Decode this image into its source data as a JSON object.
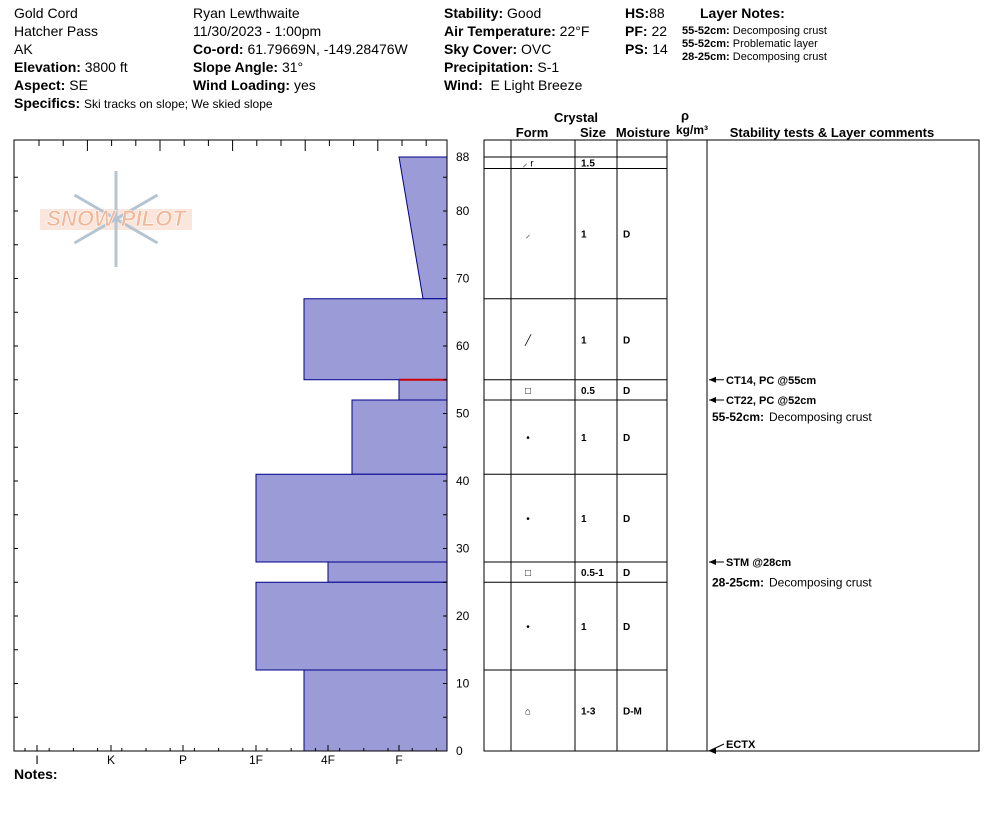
{
  "header": {
    "location_name": "Gold Cord",
    "area": "Hatcher Pass",
    "state": "AK",
    "elevation_label": "Elevation:",
    "elevation_value": "3800 ft",
    "aspect_label": "Aspect:",
    "aspect_value": "SE",
    "specifics_label": "Specifics:",
    "specifics_value": "Ski tracks on slope; We skied slope",
    "observer": "Ryan Lewthwaite",
    "datetime": "11/30/2023 - 1:00pm",
    "coord_label": "Co-ord:",
    "coord_value": "61.79669N, -149.28476W",
    "slope_label": "Slope Angle:",
    "slope_value": "31°",
    "wind_loading_label": "Wind Loading:",
    "wind_loading_value": "yes",
    "stability_label": "Stability:",
    "stability_value": "Good",
    "air_temp_label": "Air Temperature:",
    "air_temp_value": "22°F",
    "sky_label": "Sky Cover:",
    "sky_value": "OVC",
    "precip_label": "Precipitation:",
    "precip_value": "S-1",
    "wind_label": "Wind:",
    "wind_value": "E Light Breeze",
    "hs_label": "HS:",
    "hs_value": "88",
    "pf_label": "PF:",
    "pf_value": "22",
    "ps_label": "PS:",
    "ps_value": "14",
    "layer_notes_title": "Layer Notes:",
    "layer_notes": [
      {
        "range": "55-52cm:",
        "text": "Decomposing crust"
      },
      {
        "range": "55-52cm:",
        "text": "Problematic layer"
      },
      {
        "range": "28-25cm:",
        "text": "Decomposing crust"
      }
    ]
  },
  "logo_text": "SNOW PILOT",
  "notes_label": "Notes:",
  "table_headers": {
    "crystal": "Crystal",
    "form": "Form",
    "size": "Size",
    "moisture": "Moisture",
    "rho": "ρ",
    "density_unit": "kg/m³",
    "comments": "Stability tests & Layer comments"
  },
  "colors": {
    "hardness_fill": "#9b9bd8",
    "outline": "#00008b",
    "problem_line": "#cc0000",
    "logo_orange": "#f0b89a",
    "logo_blue": "#b5c4d3"
  },
  "chart_data": {
    "type": "snow_profile",
    "y_axis": {
      "min": 0,
      "max": 88,
      "ticks": [
        0,
        10,
        20,
        30,
        40,
        50,
        60,
        70,
        80,
        88
      ],
      "unit": "cm"
    },
    "x_axis": {
      "ticks": [
        "I",
        "K",
        "P",
        "1F",
        "4F",
        "F"
      ]
    },
    "layers": [
      {
        "top": 88,
        "bottom": 67,
        "hardness_top": "F",
        "hardness_bottom": "F+",
        "form": "⸝r",
        "size": "",
        "moisture": ""
      },
      {
        "top": 67,
        "bottom": 55,
        "hardness": "4F-",
        "form": "╱",
        "size": "1",
        "moisture": "D"
      },
      {
        "top": 55,
        "bottom": 52,
        "hardness": "F",
        "form": "□",
        "size": "0.5",
        "moisture": "D"
      },
      {
        "top": 52,
        "bottom": 41,
        "hardness": "4F+",
        "form": "•",
        "size": "1",
        "moisture": "D"
      },
      {
        "top": 41,
        "bottom": 28,
        "hardness": "1F",
        "form": "•",
        "size": "1",
        "moisture": "D"
      },
      {
        "top": 28,
        "bottom": 25,
        "hardness": "4F",
        "form": "□",
        "size": "0.5-1",
        "moisture": "D"
      },
      {
        "top": 25,
        "bottom": 12,
        "hardness": "1F",
        "form": "•",
        "size": "1",
        "moisture": "D"
      },
      {
        "top": 12,
        "bottom": 0,
        "hardness": "4F-",
        "form": "⌂",
        "size": "1-3",
        "moisture": "D-M"
      }
    ],
    "layer_cells": [
      {
        "top": 88,
        "bottom": 86.3,
        "form": "⸝ r",
        "size": "1.5",
        "moisture": ""
      },
      {
        "top": 86.3,
        "bottom": 67,
        "form": "⸝",
        "size": "1",
        "moisture": "D"
      },
      {
        "top": 67,
        "bottom": 55,
        "form": "╱",
        "size": "1",
        "moisture": "D"
      },
      {
        "top": 55,
        "bottom": 52,
        "form": "□",
        "size": "0.5",
        "moisture": "D"
      },
      {
        "top": 52,
        "bottom": 41,
        "form": "•",
        "size": "1",
        "moisture": "D"
      },
      {
        "top": 41,
        "bottom": 28,
        "form": "•",
        "size": "1",
        "moisture": "D"
      },
      {
        "top": 28,
        "bottom": 25,
        "form": "□",
        "size": "0.5-1",
        "moisture": "D"
      },
      {
        "top": 25,
        "bottom": 12,
        "form": "•",
        "size": "1",
        "moisture": "D"
      },
      {
        "top": 12,
        "bottom": 0,
        "form": "⌂",
        "size": "1-3",
        "moisture": "D-M"
      }
    ],
    "problem_layer_at": 55,
    "tests": [
      {
        "depth": 55,
        "text": "CT14, PC @55cm"
      },
      {
        "depth": 52,
        "text": "CT22, PC @52cm"
      },
      {
        "depth": 28,
        "text": "STM @28cm"
      },
      {
        "depth": 0,
        "text": "ECTX"
      }
    ],
    "comments": [
      {
        "depth": 49.5,
        "label": "55-52cm:",
        "text": "Decomposing crust"
      },
      {
        "depth": 25,
        "label": "28-25cm:",
        "text": "Decomposing crust"
      }
    ]
  }
}
